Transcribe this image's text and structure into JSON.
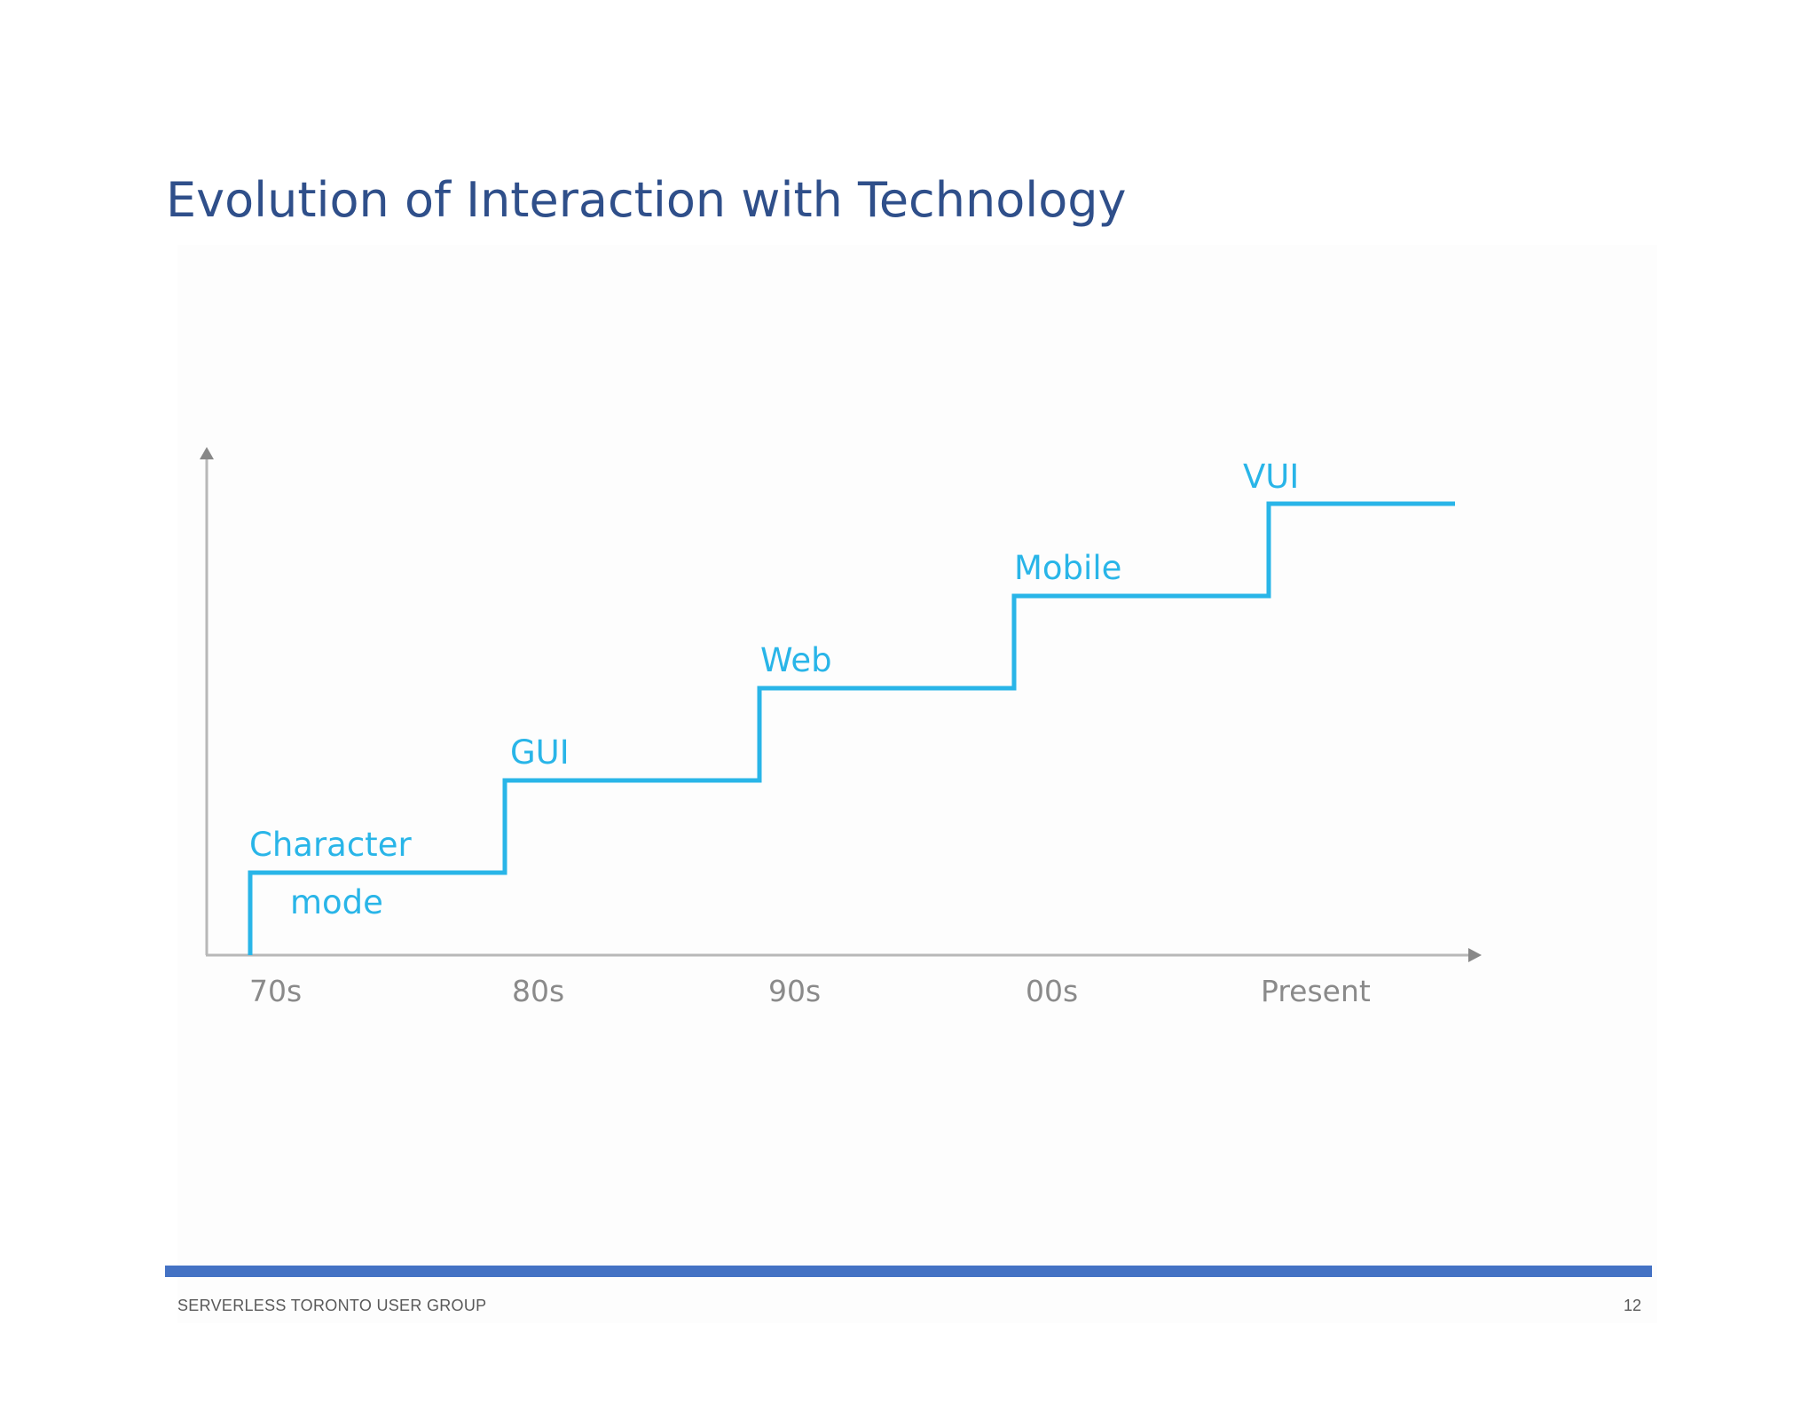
{
  "slide": {
    "title": "Evolution of Interaction with Technology",
    "page_number": "12"
  },
  "footer": {
    "text": "SERVERLESS TORONTO USER GROUP"
  },
  "colors": {
    "title": "#2f4f8a",
    "step_line": "#29b5e8",
    "axis": "#b8b8b8",
    "axis_arrow": "#888888",
    "era_label": "#8a8a8a",
    "footer_bar": "#4472c4"
  },
  "diagram": {
    "type": "staircase",
    "eras": [
      "70s",
      "80s",
      "90s",
      "00s",
      "Present"
    ],
    "steps": [
      {
        "lines": [
          "Character",
          "mode"
        ],
        "level": 1,
        "era": "70s"
      },
      {
        "lines": [
          "GUI"
        ],
        "level": 2,
        "era": "80s"
      },
      {
        "lines": [
          "Web"
        ],
        "level": 3,
        "era": "90s"
      },
      {
        "lines": [
          "Mobile"
        ],
        "level": 4,
        "era": "00s"
      },
      {
        "lines": [
          "VUI"
        ],
        "level": 5,
        "era": "Present"
      }
    ]
  }
}
